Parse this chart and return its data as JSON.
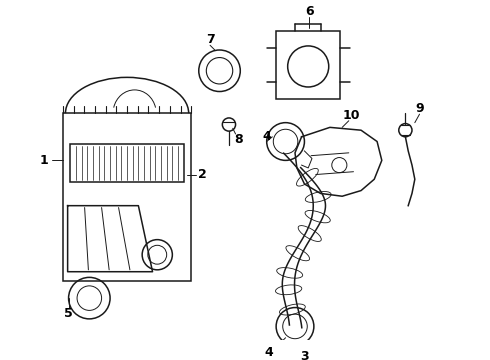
{
  "bg_color": "#ffffff",
  "line_color": "#1a1a1a",
  "label_color": "#000000",
  "lw": 1.1
}
